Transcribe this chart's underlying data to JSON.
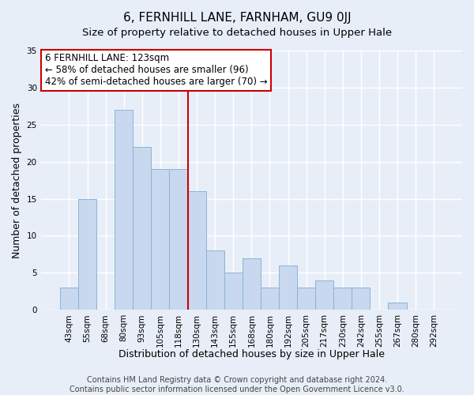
{
  "title": "6, FERNHILL LANE, FARNHAM, GU9 0JJ",
  "subtitle": "Size of property relative to detached houses in Upper Hale",
  "xlabel": "Distribution of detached houses by size in Upper Hale",
  "ylabel": "Number of detached properties",
  "bin_labels": [
    "43sqm",
    "55sqm",
    "68sqm",
    "80sqm",
    "93sqm",
    "105sqm",
    "118sqm",
    "130sqm",
    "143sqm",
    "155sqm",
    "168sqm",
    "180sqm",
    "192sqm",
    "205sqm",
    "217sqm",
    "230sqm",
    "242sqm",
    "255sqm",
    "267sqm",
    "280sqm",
    "292sqm"
  ],
  "bar_heights": [
    3,
    15,
    0,
    27,
    22,
    19,
    19,
    16,
    8,
    5,
    7,
    3,
    6,
    3,
    4,
    3,
    3,
    0,
    1,
    0,
    0
  ],
  "bar_color": "#c8d8ee",
  "bar_edge_color": "#8ab4d8",
  "vline_color": "#cc0000",
  "ylim": [
    0,
    35
  ],
  "yticks": [
    0,
    5,
    10,
    15,
    20,
    25,
    30,
    35
  ],
  "annotation_title": "6 FERNHILL LANE: 123sqm",
  "annotation_line1": "← 58% of detached houses are smaller (96)",
  "annotation_line2": "42% of semi-detached houses are larger (70) →",
  "annotation_box_color": "#ffffff",
  "annotation_box_edge": "#cc0000",
  "footer1": "Contains HM Land Registry data © Crown copyright and database right 2024.",
  "footer2": "Contains public sector information licensed under the Open Government Licence v3.0.",
  "bg_color": "#e8eef8",
  "grid_color": "#ffffff",
  "title_fontsize": 11,
  "subtitle_fontsize": 9.5,
  "label_fontsize": 9,
  "tick_fontsize": 7.5,
  "footer_fontsize": 7,
  "vline_index": 6.5
}
